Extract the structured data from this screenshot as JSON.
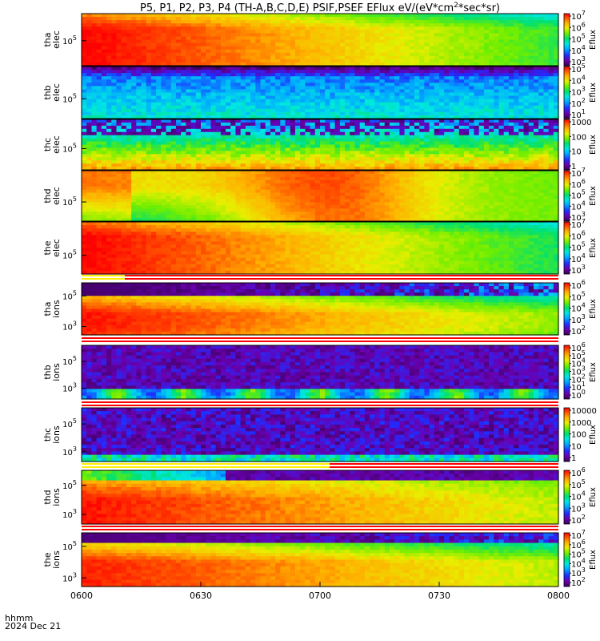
{
  "chart_data": {
    "type": "heatmap",
    "title": "P5, P1, P2, P3, P4 (TH-A,B,C,D,E) PSIF,PSEF EFlux eV/(eV*cm²*sec*sr)",
    "title_parts": [
      "P5, P1, P2, P3, P4 (TH-A,B,C,D,E) PSIF,PSEF EFlux eV/(eV*cm",
      "2",
      "*sec*sr)"
    ],
    "x_axis": {
      "ticks": [
        "0600",
        "0630",
        "0700",
        "0730",
        "0800"
      ],
      "range": [
        "06:00",
        "08:00"
      ],
      "footer_label": "hhmm",
      "footer_date": "2024 Dec 21"
    },
    "colorbar_label": "Eflux",
    "panels": [
      {
        "probe": "tha",
        "species": "elec",
        "yticks": [
          {
            "text": "10",
            "exp": "5"
          }
        ],
        "cbar_ticks": [
          {
            "text": "10",
            "exp": "7"
          },
          {
            "text": "10",
            "exp": "6"
          },
          {
            "text": "10",
            "exp": "5"
          },
          {
            "text": "10",
            "exp": "4"
          },
          {
            "text": "10",
            "exp": "3"
          }
        ]
      },
      {
        "probe": "thb",
        "species": "elec",
        "yticks": [
          {
            "text": "10",
            "exp": "5"
          }
        ],
        "cbar_ticks": [
          {
            "text": "10",
            "exp": "5"
          },
          {
            "text": "10",
            "exp": "4"
          },
          {
            "text": "10",
            "exp": "3"
          },
          {
            "text": "10",
            "exp": "2"
          },
          {
            "text": "10",
            "exp": "1"
          }
        ]
      },
      {
        "probe": "thc",
        "species": "elec",
        "yticks": [
          {
            "text": "10",
            "exp": "5"
          }
        ],
        "cbar_ticks": [
          {
            "text": "1000",
            "exp": ""
          },
          {
            "text": "100",
            "exp": ""
          },
          {
            "text": "10",
            "exp": ""
          },
          {
            "text": "1",
            "exp": ""
          }
        ]
      },
      {
        "probe": "thd",
        "species": "elec",
        "yticks": [
          {
            "text": "10",
            "exp": "5"
          }
        ],
        "cbar_ticks": [
          {
            "text": "10",
            "exp": "7"
          },
          {
            "text": "10",
            "exp": "6"
          },
          {
            "text": "10",
            "exp": "5"
          },
          {
            "text": "10",
            "exp": "4"
          },
          {
            "text": "10",
            "exp": "3"
          }
        ]
      },
      {
        "probe": "the",
        "species": "elec",
        "yticks": [
          {
            "text": "10",
            "exp": "5"
          }
        ],
        "cbar_ticks": [
          {
            "text": "10",
            "exp": "7"
          },
          {
            "text": "10",
            "exp": "6"
          },
          {
            "text": "10",
            "exp": "5"
          },
          {
            "text": "10",
            "exp": "4"
          },
          {
            "text": "10",
            "exp": "3"
          }
        ]
      },
      {
        "probe": "tha",
        "species": "ions",
        "yticks": [
          {
            "text": "10",
            "exp": "5"
          },
          {
            "text": "10",
            "exp": "3"
          }
        ],
        "cbar_ticks": [
          {
            "text": "10",
            "exp": "6"
          },
          {
            "text": "10",
            "exp": "5"
          },
          {
            "text": "10",
            "exp": "4"
          },
          {
            "text": "10",
            "exp": "3"
          },
          {
            "text": "10",
            "exp": "2"
          }
        ]
      },
      {
        "probe": "thb",
        "species": "ions",
        "yticks": [
          {
            "text": "10",
            "exp": "5"
          },
          {
            "text": "10",
            "exp": "3"
          }
        ],
        "cbar_ticks": [
          {
            "text": "10",
            "exp": "6"
          },
          {
            "text": "10",
            "exp": "5"
          },
          {
            "text": "10",
            "exp": "4"
          },
          {
            "text": "10",
            "exp": "3"
          },
          {
            "text": "10",
            "exp": "2"
          },
          {
            "text": "10",
            "exp": "1"
          },
          {
            "text": "10",
            "exp": "0"
          }
        ]
      },
      {
        "probe": "thc",
        "species": "ions",
        "yticks": [
          {
            "text": "10",
            "exp": "5"
          },
          {
            "text": "10",
            "exp": "3"
          }
        ],
        "cbar_ticks": [
          {
            "text": "10000",
            "exp": ""
          },
          {
            "text": "1000",
            "exp": ""
          },
          {
            "text": "100",
            "exp": ""
          },
          {
            "text": "10",
            "exp": ""
          },
          {
            "text": "1",
            "exp": ""
          }
        ]
      },
      {
        "probe": "thd",
        "species": "ions",
        "yticks": [
          {
            "text": "10",
            "exp": "5"
          },
          {
            "text": "10",
            "exp": "3"
          }
        ],
        "cbar_ticks": [
          {
            "text": "10",
            "exp": "6"
          },
          {
            "text": "10",
            "exp": "5"
          },
          {
            "text": "10",
            "exp": "4"
          },
          {
            "text": "10",
            "exp": "3"
          },
          {
            "text": "10",
            "exp": "2"
          }
        ]
      },
      {
        "probe": "the",
        "species": "ions",
        "yticks": [
          {
            "text": "10",
            "exp": "5"
          },
          {
            "text": "10",
            "exp": "3"
          }
        ],
        "cbar_ticks": [
          {
            "text": "10",
            "exp": "7"
          },
          {
            "text": "10",
            "exp": "6"
          },
          {
            "text": "10",
            "exp": "5"
          },
          {
            "text": "10",
            "exp": "4"
          },
          {
            "text": "10",
            "exp": "3"
          },
          {
            "text": "10",
            "exp": "2"
          }
        ]
      }
    ],
    "colormap": [
      "#3a005a",
      "#6a00b0",
      "#1f2cff",
      "#00a8ff",
      "#00e8e0",
      "#00e070",
      "#70ee00",
      "#e8ee00",
      "#ffb000",
      "#ff5000",
      "#ff0000"
    ],
    "grid": false,
    "legend": "colorbar-right"
  }
}
